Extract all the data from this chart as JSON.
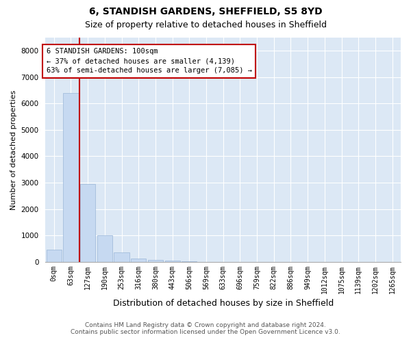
{
  "title": "6, STANDISH GARDENS, SHEFFIELD, S5 8YD",
  "subtitle": "Size of property relative to detached houses in Sheffield",
  "xlabel": "Distribution of detached houses by size in Sheffield",
  "ylabel": "Number of detached properties",
  "bar_categories": [
    "0sqm",
    "63sqm",
    "127sqm",
    "190sqm",
    "253sqm",
    "316sqm",
    "380sqm",
    "443sqm",
    "506sqm",
    "569sqm",
    "633sqm",
    "696sqm",
    "759sqm",
    "822sqm",
    "886sqm",
    "949sqm",
    "1012sqm",
    "1075sqm",
    "1139sqm",
    "1202sqm",
    "1265sqm"
  ],
  "bar_values": [
    450,
    6400,
    2950,
    1000,
    350,
    130,
    80,
    50,
    10,
    0,
    0,
    0,
    0,
    0,
    0,
    0,
    0,
    0,
    0,
    0,
    0
  ],
  "bar_color": "#c6d9f1",
  "bar_edgecolor": "#9ab5d8",
  "property_line_color": "#c00000",
  "annotation_line1": "6 STANDISH GARDENS: 100sqm",
  "annotation_line2": "← 37% of detached houses are smaller (4,139)",
  "annotation_line3": "63% of semi-detached houses are larger (7,085) →",
  "annotation_box_color": "#c00000",
  "annotation_bg": "#ffffff",
  "ylim": [
    0,
    8500
  ],
  "yticks": [
    0,
    1000,
    2000,
    3000,
    4000,
    5000,
    6000,
    7000,
    8000
  ],
  "plot_bg": "#dce8f5",
  "footer_line1": "Contains HM Land Registry data © Crown copyright and database right 2024.",
  "footer_line2": "Contains public sector information licensed under the Open Government Licence v3.0.",
  "title_fontsize": 10,
  "subtitle_fontsize": 9,
  "tick_fontsize": 7,
  "ylabel_fontsize": 8,
  "xlabel_fontsize": 9
}
